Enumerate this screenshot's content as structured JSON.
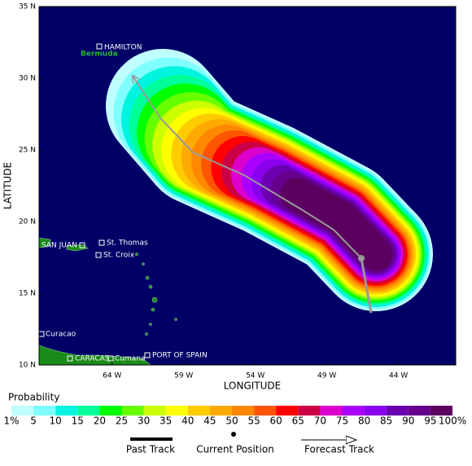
{
  "map": {
    "x_label": "LONGITUDE",
    "y_label": "LATITUDE",
    "xlim": [
      -69.1,
      -40
    ],
    "ylim": [
      10,
      35
    ],
    "xticks": [
      {
        "value": -64,
        "label": "64 W"
      },
      {
        "value": -59,
        "label": "59 W"
      },
      {
        "value": -54,
        "label": "54 W"
      },
      {
        "value": -49,
        "label": "49 W"
      },
      {
        "value": -44,
        "label": "44 W"
      }
    ],
    "yticks": [
      {
        "value": 10,
        "label": "10 N"
      },
      {
        "value": 15,
        "label": "15 N"
      },
      {
        "value": 20,
        "label": "20 N"
      },
      {
        "value": 25,
        "label": "25 N"
      },
      {
        "value": 30,
        "label": "30 N"
      },
      {
        "value": 35,
        "label": "35 N"
      }
    ],
    "places": {
      "hamilton": "HAMILTON",
      "bermuda": "Bermuda",
      "san_juan": "SAN JUAN",
      "st_thomas": "St. Thomas",
      "st_croix": "St. Croix",
      "curacao": "Curacao",
      "caracas": "CARACAS",
      "cumana": "Cumana",
      "port_of_spain": "PORT OF SPAIN"
    }
  },
  "probability_scale": {
    "title": "Probability",
    "labels": [
      "1%",
      "5",
      "10",
      "15",
      "20",
      "25",
      "30",
      "35",
      "40",
      "45",
      "50",
      "55",
      "60",
      "65",
      "70",
      "75",
      "80",
      "85",
      "90",
      "95",
      "100%"
    ],
    "colors": [
      "#c0ffff",
      "#80ffff",
      "#00f5e0",
      "#00ff99",
      "#00ff00",
      "#66ff00",
      "#ccff00",
      "#ffff00",
      "#ffcc00",
      "#ffaa00",
      "#ff8800",
      "#ff5500",
      "#ff0000",
      "#cc0044",
      "#dd00cc",
      "#aa00ff",
      "#8800ee",
      "#6a00b0",
      "#66008c",
      "#5c0060"
    ]
  },
  "track_legend": {
    "past": "Past Track",
    "current": "Current Position",
    "forecast": "Forecast Track"
  }
}
